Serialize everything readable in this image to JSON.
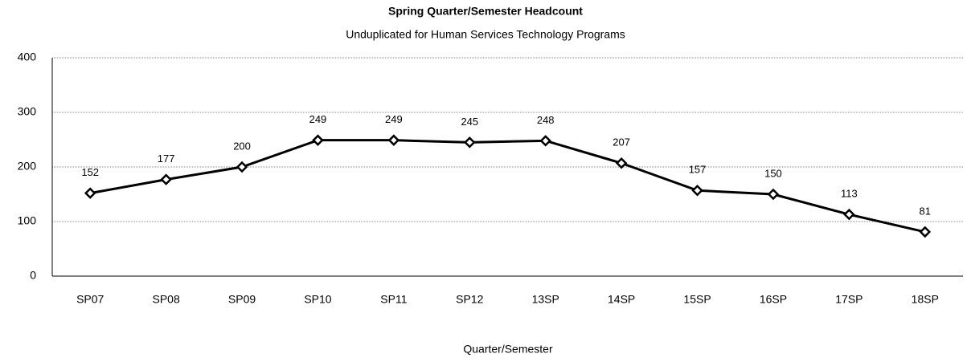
{
  "chart_data": {
    "type": "line",
    "title": "Spring Quarter/Semester Headcount",
    "subtitle": "Unduplicated for Human Services Technology Programs",
    "x_label": "Quarter/Semester",
    "categories": [
      "SP07",
      "SP08",
      "SP09",
      "SP10",
      "SP11",
      "SP12",
      "13SP",
      "14SP",
      "15SP",
      "16SP",
      "17SP",
      "18SP"
    ],
    "series": [
      {
        "name": "Headcount",
        "color": "#000000",
        "values": [
          152,
          177,
          200,
          249,
          249,
          245,
          248,
          207,
          157,
          150,
          113,
          81
        ]
      }
    ],
    "ylim": [
      0,
      400
    ],
    "yticks": [
      0,
      100,
      200,
      300,
      400
    ],
    "grid": true
  }
}
